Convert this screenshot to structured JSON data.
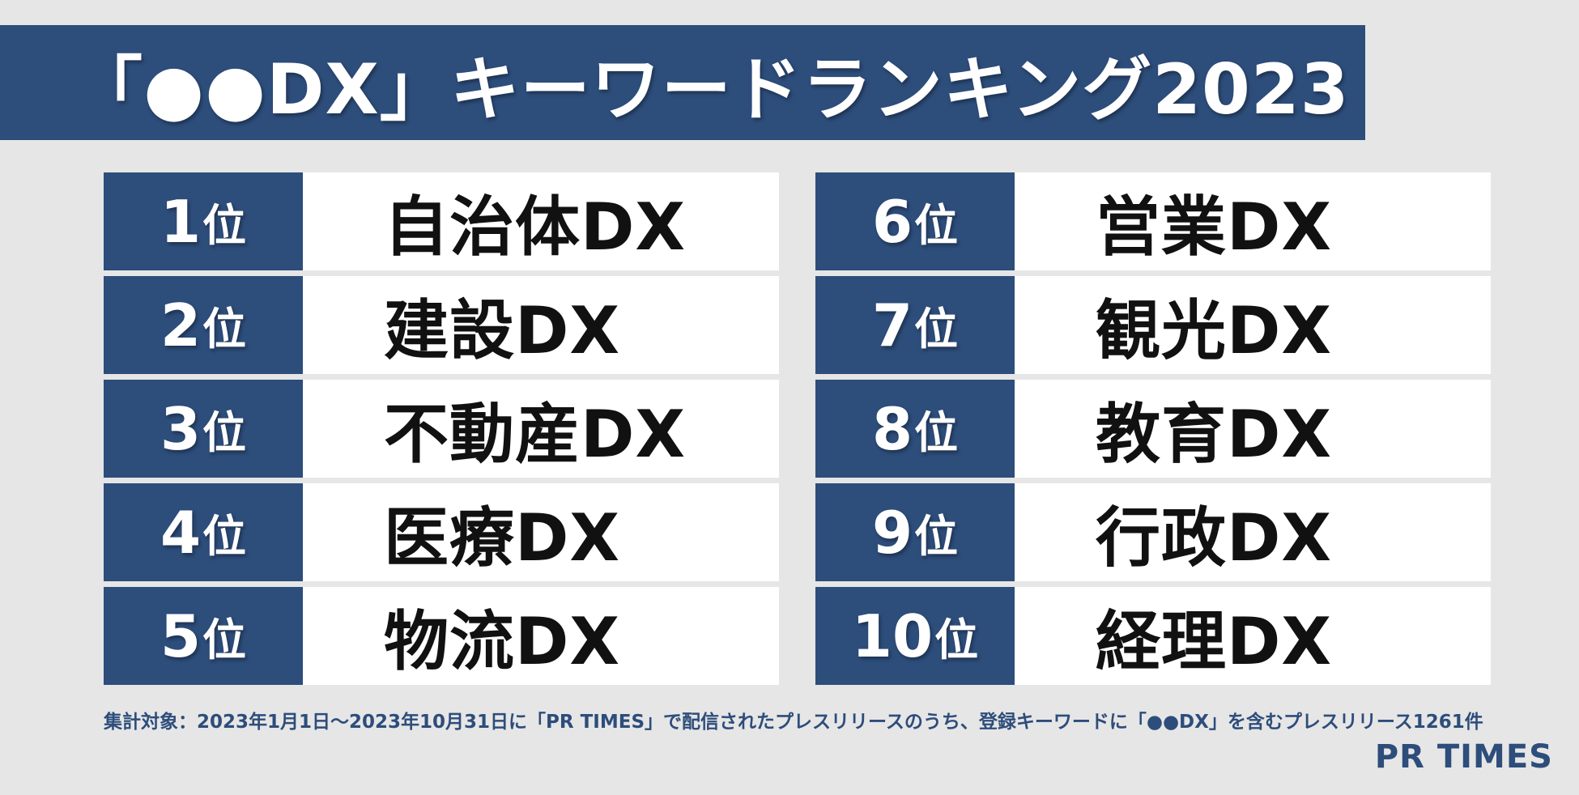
{
  "title": "「●●DX」キーワードランキング2023",
  "rank_suffix": "位",
  "rankings": {
    "left": [
      {
        "rank": "1",
        "name": "自治体DX"
      },
      {
        "rank": "2",
        "name": "建設DX"
      },
      {
        "rank": "3",
        "name": "不動産DX"
      },
      {
        "rank": "4",
        "name": "医療DX"
      },
      {
        "rank": "5",
        "name": "物流DX"
      }
    ],
    "right": [
      {
        "rank": "6",
        "name": "営業DX"
      },
      {
        "rank": "7",
        "name": "観光DX"
      },
      {
        "rank": "8",
        "name": "教育DX"
      },
      {
        "rank": "9",
        "name": "行政DX"
      },
      {
        "rank": "10",
        "name": "経理DX"
      }
    ]
  },
  "footnote": "集計対象：2023年1月1日～2023年10月31日に「PR TIMES」で配信されたプレスリリースのうち、登録キーワードに「●●DX」を含むプレスリリース1261件",
  "logo": "PR TIMES",
  "colors": {
    "banner": "#2d4d7b",
    "background": "#e6e6e6",
    "cell": "#ffffff"
  }
}
